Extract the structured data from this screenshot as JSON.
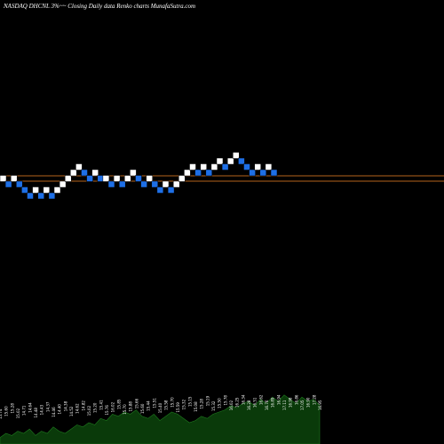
{
  "header": {
    "title": "NASDAQ DHCNL  3%~~  Closing Daily data  Renko  charts MunafaSutra.com"
  },
  "chart_data": {
    "type": "renko",
    "title": "NASDAQ DHCNL  3%~~  Closing Daily data  Renko  charts MunafaSutra.com",
    "box_size": "3%",
    "colors": {
      "up_brick": "#ffffff",
      "down_brick": "#1e6fe6",
      "brick_outline": "#000000",
      "reference_line": "#b5651d",
      "volume_area": "#0a3a0a",
      "volume_outline": "#1f7a1f",
      "background": "#000000"
    },
    "reference_lines": [
      {
        "level": 0,
        "label": ""
      },
      {
        "level": 1,
        "label": ""
      }
    ],
    "bricks": [
      {
        "direction": "up",
        "level": 1
      },
      {
        "direction": "down",
        "level": 0
      },
      {
        "direction": "up",
        "level": 1
      },
      {
        "direction": "down",
        "level": 0
      },
      {
        "direction": "down",
        "level": -1
      },
      {
        "direction": "down",
        "level": -2
      },
      {
        "direction": "up",
        "level": -1
      },
      {
        "direction": "down",
        "level": -2
      },
      {
        "direction": "up",
        "level": -1
      },
      {
        "direction": "down",
        "level": -2
      },
      {
        "direction": "up",
        "level": -1
      },
      {
        "direction": "up",
        "level": 0
      },
      {
        "direction": "up",
        "level": 1
      },
      {
        "direction": "up",
        "level": 2
      },
      {
        "direction": "up",
        "level": 3
      },
      {
        "direction": "down",
        "level": 2
      },
      {
        "direction": "down",
        "level": 1
      },
      {
        "direction": "up",
        "level": 2
      },
      {
        "direction": "down",
        "level": 1
      },
      {
        "direction": "up",
        "level": 1
      },
      {
        "direction": "down",
        "level": 0
      },
      {
        "direction": "up",
        "level": 1
      },
      {
        "direction": "down",
        "level": 0
      },
      {
        "direction": "up",
        "level": 1
      },
      {
        "direction": "up",
        "level": 2
      },
      {
        "direction": "down",
        "level": 1
      },
      {
        "direction": "down",
        "level": 0
      },
      {
        "direction": "up",
        "level": 1
      },
      {
        "direction": "down",
        "level": 0
      },
      {
        "direction": "down",
        "level": -1
      },
      {
        "direction": "up",
        "level": 0
      },
      {
        "direction": "down",
        "level": -1
      },
      {
        "direction": "up",
        "level": 0
      },
      {
        "direction": "up",
        "level": 1
      },
      {
        "direction": "up",
        "level": 2
      },
      {
        "direction": "up",
        "level": 3
      },
      {
        "direction": "down",
        "level": 2
      },
      {
        "direction": "up",
        "level": 3
      },
      {
        "direction": "down",
        "level": 2
      },
      {
        "direction": "up",
        "level": 3
      },
      {
        "direction": "up",
        "level": 4
      },
      {
        "direction": "down",
        "level": 3
      },
      {
        "direction": "up",
        "level": 4
      },
      {
        "direction": "up",
        "level": 5
      },
      {
        "direction": "down",
        "level": 4
      },
      {
        "direction": "down",
        "level": 3
      },
      {
        "direction": "down",
        "level": 2
      },
      {
        "direction": "up",
        "level": 3
      },
      {
        "direction": "down",
        "level": 2
      },
      {
        "direction": "up",
        "level": 3
      },
      {
        "direction": "down",
        "level": 2
      }
    ],
    "price_labels": [
      "15.74",
      "15.60",
      "15.28",
      "15.02",
      "14.71",
      "14.64",
      "14.48",
      "14.43",
      "14.37",
      "14.46",
      "14.40",
      "14.38",
      "14.52",
      "14.62",
      "14.82",
      "15.02",
      "15.20",
      "15.41",
      "15.76",
      "16.02",
      "15.85",
      "15.70",
      "15.88",
      "15.66",
      "15.60",
      "15.44",
      "15.51",
      "15.40",
      "15.58",
      "15.70",
      "15.59",
      "15.32",
      "15.15",
      "15.08",
      "15.28",
      "15.19",
      "15.32",
      "15.50",
      "15.78",
      "16.02",
      "16.25",
      "16.34",
      "16.28",
      "16.51",
      "16.62",
      "16.76",
      "16.89",
      "16.94",
      "17.11",
      "16.98",
      "16.86",
      "17.05",
      "16.90",
      "17.28",
      "16.95"
    ],
    "volume": [
      3,
      5,
      4,
      6,
      5,
      7,
      4,
      6,
      5,
      8,
      6,
      5,
      7,
      9,
      8,
      10,
      9,
      12,
      11,
      14,
      13,
      15,
      14,
      16,
      13,
      12,
      14,
      11,
      13,
      15,
      14,
      12,
      10,
      11,
      13,
      12,
      14,
      15,
      16,
      18,
      17,
      19,
      20,
      18,
      21,
      19,
      22,
      20,
      23,
      21,
      19,
      22,
      20,
      21,
      18
    ],
    "volume_max": 25,
    "grid": false,
    "legend": "none"
  }
}
